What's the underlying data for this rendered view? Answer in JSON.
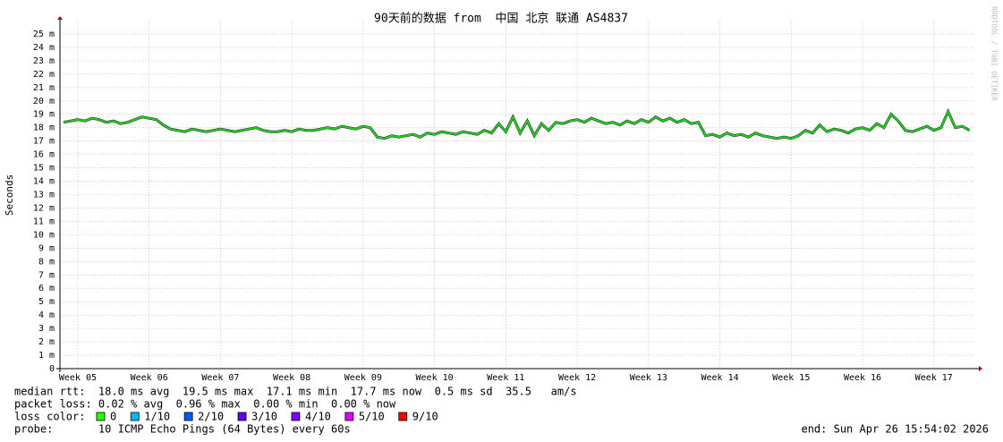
{
  "chart_data": {
    "type": "line",
    "title": "90天前的数据 from  中国 北京 联通 AS4837",
    "ylabel": "Seconds",
    "watermark": "RRDTOOL / TOBI OETIKER",
    "xlim": [
      4.75,
      17.58
    ],
    "xticks": [
      {
        "value": 5,
        "label": "Week 05"
      },
      {
        "value": 6,
        "label": "Week 06"
      },
      {
        "value": 7,
        "label": "Week 07"
      },
      {
        "value": 8,
        "label": "Week 08"
      },
      {
        "value": 9,
        "label": "Week 09"
      },
      {
        "value": 10,
        "label": "Week 10"
      },
      {
        "value": 11,
        "label": "Week 11"
      },
      {
        "value": 12,
        "label": "Week 12"
      },
      {
        "value": 13,
        "label": "Week 13"
      },
      {
        "value": 14,
        "label": "Week 14"
      },
      {
        "value": 15,
        "label": "Week 15"
      },
      {
        "value": 16,
        "label": "Week 16"
      },
      {
        "value": 17,
        "label": "Week 17"
      }
    ],
    "ylim": [
      0,
      26
    ],
    "yticks": [
      0,
      {
        "value": 1,
        "label": "1 m"
      },
      {
        "value": 2,
        "label": "2 m"
      },
      {
        "value": 3,
        "label": "3 m"
      },
      {
        "value": 4,
        "label": "4 m"
      },
      {
        "value": 5,
        "label": "5 m"
      },
      {
        "value": 6,
        "label": "6 m"
      },
      {
        "value": 7,
        "label": "7 m"
      },
      {
        "value": 8,
        "label": "8 m"
      },
      {
        "value": 9,
        "label": "9 m"
      },
      {
        "value": 10,
        "label": "10 m"
      },
      {
        "value": 11,
        "label": "11 m"
      },
      {
        "value": 12,
        "label": "12 m"
      },
      {
        "value": 13,
        "label": "13 m"
      },
      {
        "value": 14,
        "label": "14 m"
      },
      {
        "value": 15,
        "label": "15 m"
      },
      {
        "value": 16,
        "label": "16 m"
      },
      {
        "value": 17,
        "label": "17 m"
      },
      {
        "value": 18,
        "label": "18 m"
      },
      {
        "value": 19,
        "label": "19 m"
      },
      {
        "value": 20,
        "label": "20 m"
      },
      {
        "value": 21,
        "label": "21 m"
      },
      {
        "value": 22,
        "label": "22 m"
      },
      {
        "value": 23,
        "label": "23 m"
      },
      {
        "value": 24,
        "label": "24 m"
      },
      {
        "value": 25,
        "label": "25 m"
      }
    ],
    "grid": true,
    "x": [
      4.8,
      4.9,
      5.0,
      5.1,
      5.2,
      5.3,
      5.4,
      5.5,
      5.6,
      5.7,
      5.8,
      5.9,
      6.0,
      6.1,
      6.2,
      6.3,
      6.4,
      6.5,
      6.6,
      6.7,
      6.8,
      6.9,
      7.0,
      7.1,
      7.2,
      7.3,
      7.4,
      7.5,
      7.6,
      7.7,
      7.8,
      7.9,
      8.0,
      8.1,
      8.2,
      8.3,
      8.4,
      8.5,
      8.6,
      8.7,
      8.8,
      8.9,
      9.0,
      9.1,
      9.2,
      9.3,
      9.4,
      9.5,
      9.6,
      9.7,
      9.8,
      9.9,
      10.0,
      10.1,
      10.2,
      10.3,
      10.4,
      10.5,
      10.6,
      10.7,
      10.8,
      10.9,
      11.0,
      11.1,
      11.2,
      11.3,
      11.4,
      11.5,
      11.6,
      11.7,
      11.8,
      11.9,
      12.0,
      12.1,
      12.2,
      12.3,
      12.4,
      12.5,
      12.6,
      12.7,
      12.8,
      12.9,
      13.0,
      13.1,
      13.2,
      13.3,
      13.4,
      13.5,
      13.6,
      13.7,
      13.8,
      13.9,
      14.0,
      14.1,
      14.2,
      14.3,
      14.4,
      14.5,
      14.6,
      14.7,
      14.8,
      14.9,
      15.0,
      15.1,
      15.2,
      15.3,
      15.4,
      15.5,
      15.6,
      15.7,
      15.8,
      15.9,
      16.0,
      16.1,
      16.2,
      16.3,
      16.4,
      16.5,
      16.6,
      16.7,
      16.8,
      16.9,
      17.0,
      17.1,
      17.2,
      17.3,
      17.4,
      17.5
    ],
    "series": [
      {
        "name": "median rtt",
        "color": "#20d020",
        "values": [
          18.4,
          18.5,
          18.6,
          18.5,
          18.7,
          18.6,
          18.4,
          18.5,
          18.3,
          18.4,
          18.6,
          18.8,
          18.7,
          18.6,
          18.2,
          17.9,
          17.8,
          17.7,
          17.9,
          17.8,
          17.7,
          17.8,
          17.9,
          17.8,
          17.7,
          17.8,
          17.9,
          18.0,
          17.8,
          17.7,
          17.7,
          17.8,
          17.7,
          17.9,
          17.8,
          17.8,
          17.9,
          18.0,
          17.9,
          18.1,
          18.0,
          17.9,
          18.1,
          18.0,
          17.3,
          17.2,
          17.4,
          17.3,
          17.4,
          17.5,
          17.3,
          17.6,
          17.5,
          17.7,
          17.6,
          17.5,
          17.7,
          17.6,
          17.5,
          17.8,
          17.6,
          18.3,
          17.7,
          18.8,
          17.6,
          18.5,
          17.4,
          18.3,
          17.8,
          18.4,
          18.3,
          18.5,
          18.6,
          18.4,
          18.7,
          18.5,
          18.3,
          18.4,
          18.2,
          18.5,
          18.3,
          18.6,
          18.4,
          18.8,
          18.5,
          18.7,
          18.4,
          18.6,
          18.3,
          18.4,
          17.4,
          17.5,
          17.3,
          17.6,
          17.4,
          17.5,
          17.3,
          17.6,
          17.4,
          17.3,
          17.2,
          17.3,
          17.2,
          17.4,
          17.8,
          17.6,
          18.2,
          17.7,
          17.9,
          17.8,
          17.6,
          17.9,
          18.0,
          17.8,
          18.3,
          18.0,
          19.0,
          18.5,
          17.8,
          17.7,
          17.9,
          18.1,
          17.8,
          18.0,
          19.2,
          18.0,
          18.1,
          17.8
        ]
      }
    ],
    "stats_line": "median rtt:  18.0 ms avg  19.5 ms max  17.1 ms min  17.7 ms now  0.5 ms sd  35.5   am/s",
    "loss_line": "packet loss: 0.02 % avg  0.96 % max  0.00 % min  0.00 % now",
    "loss_color_label": "loss color:",
    "loss_colors": [
      {
        "label": "0",
        "color": "#26ff00"
      },
      {
        "label": "1/10",
        "color": "#00b8ff"
      },
      {
        "label": "2/10",
        "color": "#0059ff"
      },
      {
        "label": "3/10",
        "color": "#5e00ff"
      },
      {
        "label": "4/10",
        "color": "#7e00ff"
      },
      {
        "label": "5/10",
        "color": "#dd00ff"
      },
      {
        "label": "9/10",
        "color": "#ff0000"
      }
    ],
    "probe_line": "probe:       10 ICMP Echo Pings (64 Bytes) every 60s",
    "end_line": "end: Sun Apr 26 15:54:02 2026"
  }
}
